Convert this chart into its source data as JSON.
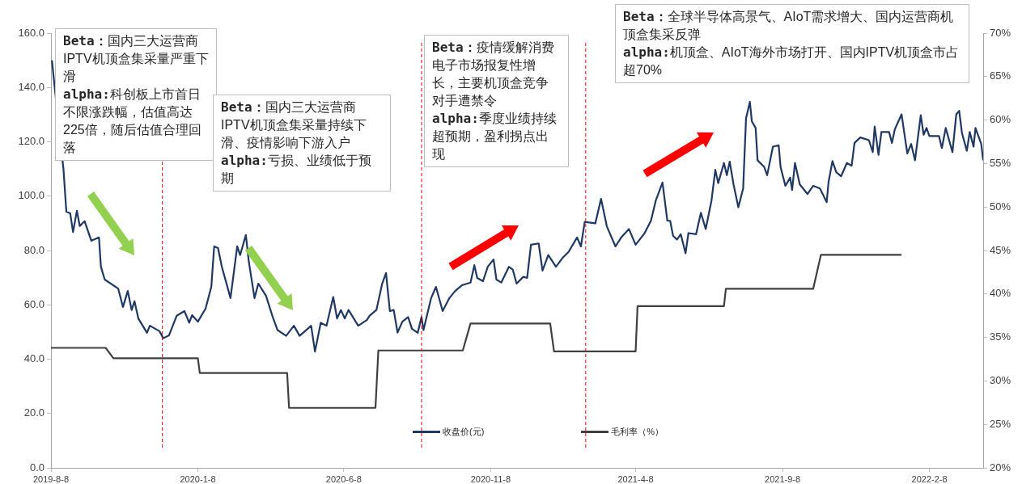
{
  "chart_data": {
    "type": "line",
    "marker": "none",
    "grid": false,
    "legend": "bottom",
    "xlim": [
      "2019-08-08",
      "2022-04-05"
    ],
    "xticks": [
      {
        "value": "2019-08-08",
        "label": "2019-8-8"
      },
      {
        "value": "2020-01-08",
        "label": "2020-1-8"
      },
      {
        "value": "2020-06-08",
        "label": "2020-6-8"
      },
      {
        "value": "2020-11-08",
        "label": "2020-11-8"
      },
      {
        "value": "2021-04-08",
        "label": "2021-4-8"
      },
      {
        "value": "2021-09-08",
        "label": "2021-9-8"
      },
      {
        "value": "2022-02-08",
        "label": "2022-2-8"
      }
    ],
    "ylim": [
      0,
      160
    ],
    "yticks": [
      {
        "value": 0,
        "label": "0.0"
      },
      {
        "value": 20,
        "label": "20.0"
      },
      {
        "value": 40,
        "label": "40.0"
      },
      {
        "value": 60,
        "label": "60.0"
      },
      {
        "value": 80,
        "label": "80.0"
      },
      {
        "value": 100,
        "label": "100.0"
      },
      {
        "value": 120,
        "label": "120.0"
      },
      {
        "value": 140,
        "label": "140.0"
      },
      {
        "value": 160,
        "label": "160.0"
      }
    ],
    "y2lim": [
      20,
      70
    ],
    "y2ticks": [
      {
        "value": 20,
        "label": "20%"
      },
      {
        "value": 25,
        "label": "25%"
      },
      {
        "value": 30,
        "label": "30%"
      },
      {
        "value": 35,
        "label": "35%"
      },
      {
        "value": 40,
        "label": "40%"
      },
      {
        "value": 45,
        "label": "45%"
      },
      {
        "value": 50,
        "label": "50%"
      },
      {
        "value": 55,
        "label": "55%"
      },
      {
        "value": 60,
        "label": "60%"
      },
      {
        "value": 65,
        "label": "65%"
      },
      {
        "value": 70,
        "label": "70%"
      }
    ],
    "series": [
      {
        "name": "收盘价(元)",
        "color": "#1f3864",
        "x": [
          "2019-08-09",
          "2019-08-11",
          "2019-08-21",
          "2019-08-24",
          "2019-08-28",
          "2019-08-31",
          "2019-09-04",
          "2019-09-07",
          "2019-09-12",
          "2019-09-19",
          "2019-09-27",
          "2019-09-29",
          "2019-10-03",
          "2019-10-17",
          "2019-10-22",
          "2019-10-27",
          "2019-10-31",
          "2019-11-03",
          "2019-11-07",
          "2019-11-16",
          "2019-11-19",
          "2019-11-29",
          "2019-12-03",
          "2019-12-09",
          "2019-12-17",
          "2019-12-25",
          "2019-12-30",
          "2020-01-02",
          "2020-01-08",
          "2020-01-16",
          "2020-01-22",
          "2020-01-25",
          "2020-01-29",
          "2020-02-02",
          "2020-02-11",
          "2020-02-18",
          "2020-02-21",
          "2020-02-27",
          "2020-03-01",
          "2020-03-07",
          "2020-03-11",
          "2020-03-19",
          "2020-03-26",
          "2020-03-31",
          "2020-04-09",
          "2020-04-17",
          "2020-04-23",
          "2020-05-05",
          "2020-05-09",
          "2020-05-15",
          "2020-05-21",
          "2020-05-28",
          "2020-06-01",
          "2020-06-05",
          "2020-06-09",
          "2020-06-13",
          "2020-06-23",
          "2020-07-02",
          "2020-07-05",
          "2020-07-12",
          "2020-07-18",
          "2020-07-22",
          "2020-07-26",
          "2020-07-30",
          "2020-08-03",
          "2020-08-08",
          "2020-08-14",
          "2020-08-18",
          "2020-08-24",
          "2020-08-28",
          "2020-08-30",
          "2020-09-07",
          "2020-09-12",
          "2020-09-19",
          "2020-09-26",
          "2020-10-02",
          "2020-10-09",
          "2020-10-18",
          "2020-10-22",
          "2020-10-25",
          "2020-10-31",
          "2020-11-05",
          "2020-11-11",
          "2020-11-14",
          "2020-11-19",
          "2020-11-27",
          "2020-12-01",
          "2020-12-05",
          "2020-12-12",
          "2020-12-16",
          "2020-12-20",
          "2020-12-28",
          "2021-01-01",
          "2021-01-07",
          "2021-01-15",
          "2021-01-22",
          "2021-01-28",
          "2021-02-06",
          "2021-02-10",
          "2021-02-14",
          "2021-02-25",
          "2021-03-03",
          "2021-03-09",
          "2021-03-18",
          "2021-03-24",
          "2021-04-01",
          "2021-04-08",
          "2021-04-17",
          "2021-04-24",
          "2021-04-29",
          "2021-05-06",
          "2021-05-11",
          "2021-05-14",
          "2021-05-17",
          "2021-05-21",
          "2021-05-25",
          "2021-05-30",
          "2021-06-02",
          "2021-06-10",
          "2021-06-15",
          "2021-06-20",
          "2021-06-26",
          "2021-06-30",
          "2021-07-03",
          "2021-07-09",
          "2021-07-12",
          "2021-07-15",
          "2021-07-19",
          "2021-07-24",
          "2021-07-29",
          "2021-08-01",
          "2021-08-05",
          "2021-08-07",
          "2021-08-11",
          "2021-08-13",
          "2021-08-20",
          "2021-08-23",
          "2021-08-29",
          "2021-09-04",
          "2021-09-06",
          "2021-09-11",
          "2021-09-16",
          "2021-09-18",
          "2021-09-21",
          "2021-09-26",
          "2021-10-04",
          "2021-10-10",
          "2021-10-17",
          "2021-10-24",
          "2021-10-26",
          "2021-10-30",
          "2021-11-03",
          "2021-11-08",
          "2021-11-14",
          "2021-11-19",
          "2021-11-22",
          "2021-11-28",
          "2021-12-07",
          "2021-12-11",
          "2021-12-13",
          "2021-12-17",
          "2021-12-20",
          "2021-12-28",
          "2021-12-31",
          "2022-01-03",
          "2022-01-10",
          "2022-01-16",
          "2022-01-20",
          "2022-01-24",
          "2022-01-30",
          "2022-02-02",
          "2022-02-05",
          "2022-02-08",
          "2022-02-18",
          "2022-02-21",
          "2022-02-25",
          "2022-03-04",
          "2022-03-08",
          "2022-03-11",
          "2022-03-14",
          "2022-03-19",
          "2022-03-22",
          "2022-03-26",
          "2022-03-28",
          "2022-04-03",
          "2022-04-05"
        ],
        "values": [
          150,
          143,
          110,
          94.3,
          93.7,
          86.8,
          94.6,
          89,
          90.8,
          83.6,
          84.8,
          74,
          69.3,
          66,
          59.2,
          65.1,
          58.1,
          61.3,
          55,
          49.7,
          52.3,
          50.3,
          47.7,
          48.8,
          56,
          57.7,
          53.4,
          56.2,
          53.8,
          58.6,
          66.6,
          81.5,
          80.9,
          74,
          62.5,
          81.5,
          78.3,
          85.7,
          76.1,
          62.5,
          67.8,
          63.3,
          55.5,
          50.7,
          48.6,
          52.3,
          48.6,
          52.3,
          42.8,
          53.4,
          52.3,
          62.9,
          55,
          58.1,
          55,
          58.1,
          52.3,
          54.4,
          56,
          58.1,
          67.8,
          71.7,
          57.7,
          58.1,
          49.8,
          53.8,
          55.5,
          51.2,
          49.7,
          55.5,
          50.7,
          62.5,
          66.6,
          57.7,
          62.5,
          65.1,
          67.2,
          68.2,
          74.6,
          69.9,
          68.7,
          74,
          76.7,
          69.3,
          68.2,
          74,
          73,
          67.8,
          70.3,
          69.9,
          82.1,
          82.6,
          72.6,
          78.3,
          74,
          77.3,
          79.4,
          84.8,
          81.5,
          90.5,
          90,
          99,
          88.9,
          81.5,
          84.8,
          87.9,
          82.1,
          86.2,
          91,
          98.4,
          105,
          91,
          90.9,
          85.4,
          84,
          86,
          79,
          86.4,
          86,
          93.9,
          87.9,
          98.3,
          109.7,
          104.8,
          112.2,
          107.7,
          112.7,
          104.3,
          95.9,
          102.8,
          128.6,
          134.7,
          127.6,
          125.1,
          113.2,
          110.7,
          107.7,
          118.2,
          118.7,
          110.7,
          103.8,
          106.8,
          102.3,
          112.2,
          104.3,
          100.8,
          103.8,
          102.8,
          97.8,
          105.3,
          112.9,
          108.8,
          107.3,
          112.2,
          111.2,
          119.6,
          121.6,
          120.6,
          116.2,
          125.6,
          115.2,
          123.6,
          123.6,
          119.6,
          124.6,
          130.1,
          115.7,
          119.2,
          113.2,
          129.8,
          122.6,
          125.1,
          122.1,
          122.1,
          117.7,
          125.1,
          116.2,
          130.1,
          131.4,
          123.1,
          116.7,
          123.6,
          118.2,
          125.1,
          119.2,
          113.2
        ]
      },
      {
        "name": "毛利率（%）",
        "color": "#404040",
        "axis": "y2",
        "x": [
          "2019-08-08",
          "2019-10-04",
          "2019-10-12",
          "2020-01-08",
          "2020-01-10",
          "2020-04-10",
          "2020-04-12",
          "2020-07-11",
          "2020-07-14",
          "2020-10-10",
          "2020-10-18",
          "2021-01-09",
          "2021-01-13",
          "2021-04-08",
          "2021-04-10",
          "2021-07-09",
          "2021-07-11",
          "2021-10-10",
          "2021-10-18",
          "2022-01-10"
        ],
        "values": [
          33.8,
          33.8,
          32.6,
          32.6,
          30.9,
          30.9,
          26.9,
          26.9,
          33.5,
          33.5,
          36.6,
          36.6,
          33.4,
          33.4,
          38.6,
          38.6,
          40.6,
          40.6,
          44.5,
          44.5
        ]
      }
    ],
    "ref_lines": [
      {
        "axis": "x",
        "value": "2019-12-02",
        "color": "#ff0000",
        "line_style": "dashed"
      },
      {
        "axis": "x",
        "value": "2020-08-28",
        "color": "#ff0000",
        "line_style": "dashed"
      },
      {
        "axis": "x",
        "value": "2021-02-15",
        "color": "#ff0000",
        "line_style": "dashed"
      }
    ],
    "annotations": [
      "Beta：国内三大运营商IPTV机顶盒集采量严重下滑\nalpha:科创板上市首日不限涨跌幅，估值高达225倍，随后估值合理回落",
      "Beta：国内三大运营商IPTV机顶盒集采量持续下滑、疫情影响下游入户\nalpha:亏损、业绩低于预期",
      "Beta：疫情缓解消费电子市场报复性增长，主要机顶盒竞争对手遭禁令\nalpha:季度业绩持续超预期，盈利拐点出现",
      "Beta：全球半导体高景气、AIoT需求增大、国内运营商机顶盒集采反弹\nalpha:机顶盒、AIoT海外市场打开、国内IPTV机顶盒市占超70%"
    ]
  }
}
